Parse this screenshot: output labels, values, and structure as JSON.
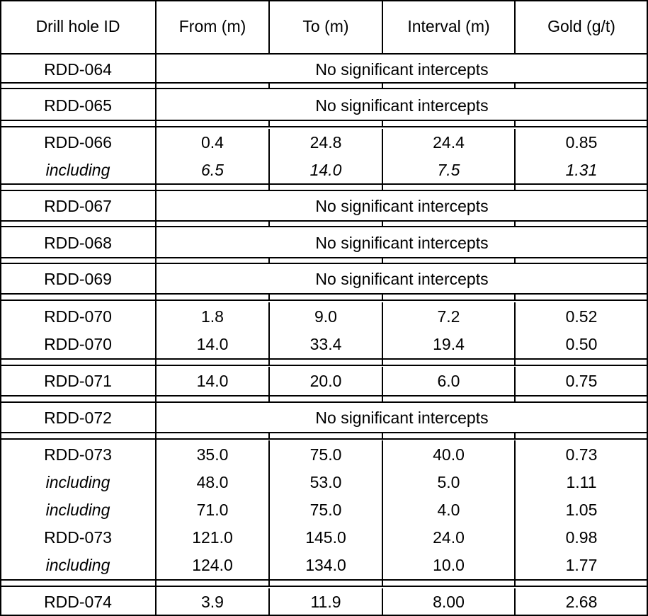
{
  "table": {
    "headers": [
      "Drill hole ID",
      "From (m)",
      "To (m)",
      "Interval (m)",
      "Gold (g/t)"
    ],
    "rows": [
      {
        "cells": [
          "RDD-064",
          "No significant intercepts"
        ]
      },
      {
        "cells": [
          "RDD-065",
          "No significant intercepts"
        ]
      },
      {
        "cells": [
          "RDD-066",
          "0.4",
          "24.8",
          "24.4",
          "0.85"
        ]
      },
      {
        "cells": [
          "including",
          "6.5",
          "14.0",
          "7.5",
          "1.31"
        ],
        "italic": "all"
      },
      {
        "cells": [
          "RDD-067",
          "No significant intercepts"
        ]
      },
      {
        "cells": [
          "RDD-068",
          "No significant intercepts"
        ]
      },
      {
        "cells": [
          "RDD-069",
          "No significant intercepts"
        ]
      },
      {
        "cells": [
          "RDD-070",
          "1.8",
          "9.0",
          "7.2",
          "0.52"
        ]
      },
      {
        "cells": [
          "RDD-070",
          "14.0",
          "33.4",
          "19.4",
          "0.50"
        ]
      },
      {
        "cells": [
          "RDD-071",
          "14.0",
          "20.0",
          "6.0",
          "0.75"
        ]
      },
      {
        "cells": [
          "RDD-072",
          "No significant intercepts"
        ]
      },
      {
        "cells": [
          "RDD-073",
          "35.0",
          "75.0",
          "40.0",
          "0.73"
        ]
      },
      {
        "cells": [
          "including",
          "48.0",
          "53.0",
          "5.0",
          "1.11"
        ],
        "italic": "first"
      },
      {
        "cells": [
          "including",
          "71.0",
          "75.0",
          "4.0",
          "1.05"
        ],
        "italic": "first"
      },
      {
        "cells": [
          "RDD-073",
          "121.0",
          "145.0",
          "24.0",
          "0.98"
        ]
      },
      {
        "cells": [
          "including",
          "124.0",
          "134.0",
          "10.0",
          "1.77"
        ],
        "italic": "first"
      },
      {
        "cells": [
          "RDD-074",
          "3.9",
          "11.9",
          "8.00",
          "2.68"
        ]
      }
    ]
  }
}
